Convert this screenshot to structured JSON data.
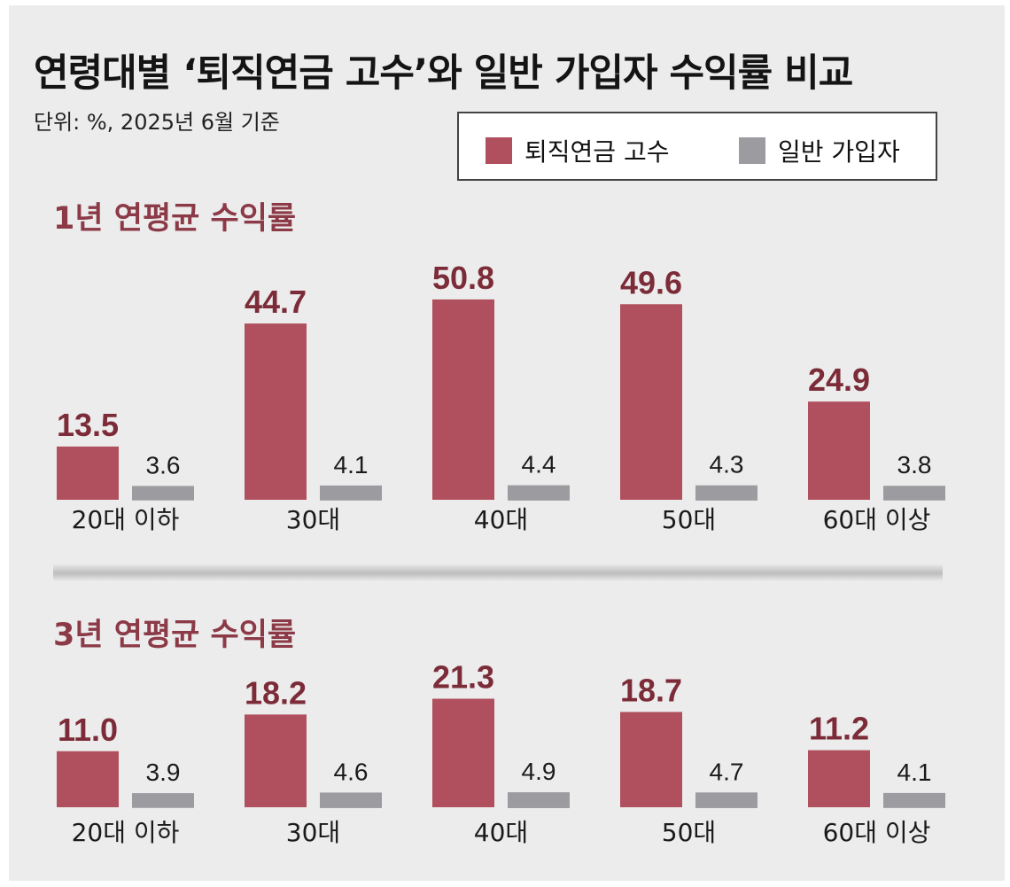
{
  "title": "연령대별 ‘퇴직연금 고수’와 일반 가입자 수익률 비교",
  "unit_note": "단위: %, 2025년 6월 기준",
  "legend": {
    "retirement_expert": "퇴직연금 고수",
    "general_subscriber": "일반 가입자"
  },
  "colors": {
    "retirement_expert": "#b04f5d",
    "general_subscriber": "#9c9ca0",
    "section_title": "#8c3a47",
    "background": "#ececec"
  },
  "chart_data": [
    {
      "type": "bar",
      "title": "1년 연평균 수익률",
      "categories": [
        "20대 이하",
        "30대",
        "40대",
        "50대",
        "60대 이상"
      ],
      "series": [
        {
          "name": "퇴직연금 고수",
          "values": [
            13.5,
            44.7,
            50.8,
            49.6,
            24.9
          ]
        },
        {
          "name": "일반 가입자",
          "values": [
            3.6,
            4.1,
            4.4,
            4.3,
            3.8
          ]
        }
      ],
      "ylim": [
        0,
        55
      ],
      "grid": false,
      "legend": "top-right"
    },
    {
      "type": "bar",
      "title": "3년 연평균 수익률",
      "categories": [
        "20대 이하",
        "30대",
        "40대",
        "50대",
        "60대 이상"
      ],
      "series": [
        {
          "name": "퇴직연금 고수",
          "values": [
            11.0,
            18.2,
            21.3,
            18.7,
            11.2
          ]
        },
        {
          "name": "일반 가입자",
          "values": [
            3.9,
            4.6,
            4.9,
            4.7,
            4.1
          ]
        }
      ],
      "ylim": [
        0,
        25
      ],
      "grid": false,
      "legend": "top-right"
    }
  ]
}
